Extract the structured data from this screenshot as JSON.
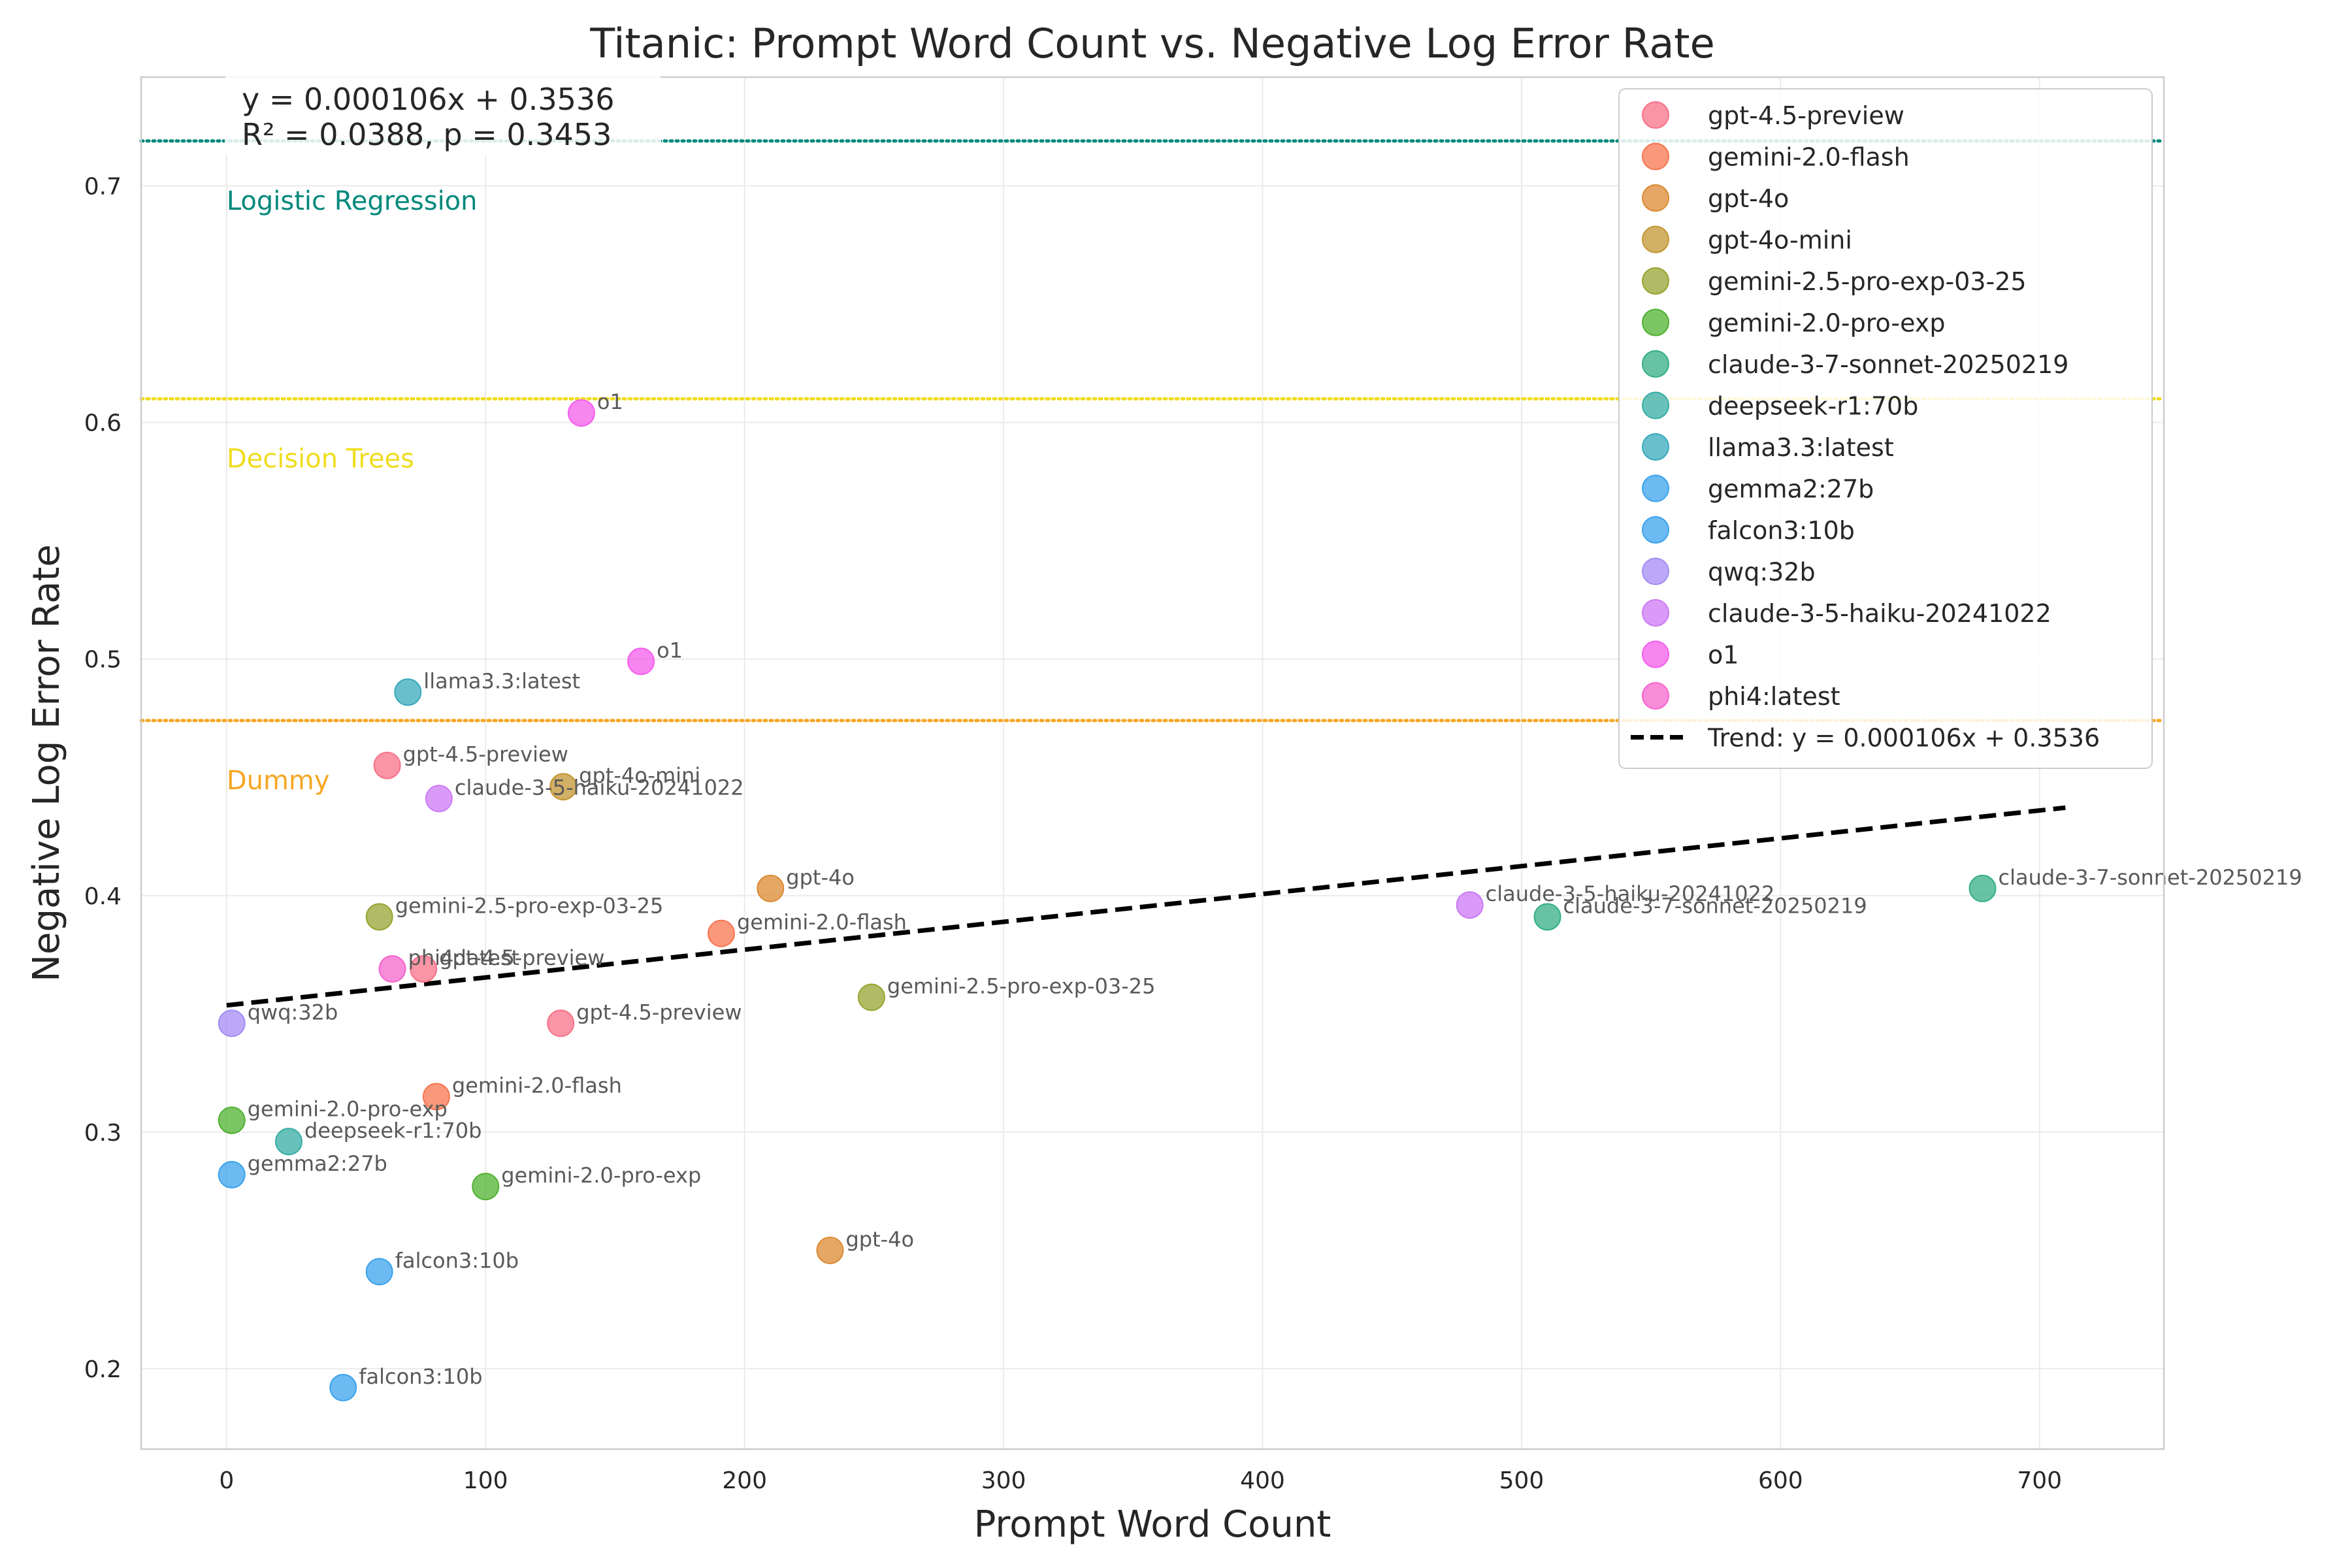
{
  "chart_data": {
    "type": "scatter",
    "title": "Titanic: Prompt Word Count vs. Negative Log Error Rate",
    "xlabel": "Prompt Word Count",
    "ylabel": "Negative Log Error Rate",
    "xlim": [
      -33,
      748
    ],
    "ylim": [
      0.166,
      0.746
    ],
    "xticks": [
      0,
      100,
      200,
      300,
      400,
      500,
      600,
      700
    ],
    "yticks": [
      0.2,
      0.3,
      0.4,
      0.5,
      0.6,
      0.7
    ],
    "grid": true,
    "legend_position": "top-right",
    "stats_text": {
      "equation": "y = 0.000106x + 0.3536",
      "r2_p": "R² = 0.0388, p = 0.3453"
    },
    "baselines": [
      {
        "label": "Logistic Regression",
        "y": 0.719,
        "color": "#00897b"
      },
      {
        "label": "Decision Trees",
        "y": 0.61,
        "color": "#f0dc1e"
      },
      {
        "label": "Dummy",
        "y": 0.474,
        "color": "#f5a623"
      }
    ],
    "trend": {
      "label": "Trend: y = 0.000106x + 0.3536",
      "slope": 0.000106,
      "intercept": 0.3536,
      "x_range": [
        0,
        710
      ]
    },
    "series": [
      {
        "name": "gpt-4.5-preview",
        "color": "#f77189",
        "points": [
          {
            "x": 62,
            "y": 0.455
          },
          {
            "x": 76,
            "y": 0.369
          },
          {
            "x": 129,
            "y": 0.346
          }
        ]
      },
      {
        "name": "gemini-2.0-flash",
        "color": "#f7754f",
        "points": [
          {
            "x": 191,
            "y": 0.384
          },
          {
            "x": 81,
            "y": 0.315
          }
        ]
      },
      {
        "name": "gpt-4o",
        "color": "#dc8932",
        "points": [
          {
            "x": 210,
            "y": 0.403
          },
          {
            "x": 233,
            "y": 0.25
          }
        ]
      },
      {
        "name": "gpt-4o-mini",
        "color": "#c39532",
        "points": [
          {
            "x": 130,
            "y": 0.446
          }
        ]
      },
      {
        "name": "gemini-2.5-pro-exp-03-25",
        "color": "#97a431",
        "points": [
          {
            "x": 59,
            "y": 0.391
          },
          {
            "x": 249,
            "y": 0.357
          }
        ]
      },
      {
        "name": "gemini-2.0-pro-exp",
        "color": "#50b131",
        "points": [
          {
            "x": 2,
            "y": 0.305
          },
          {
            "x": 100,
            "y": 0.277
          }
        ]
      },
      {
        "name": "claude-3-7-sonnet-20250219",
        "color": "#34af84",
        "points": [
          {
            "x": 678,
            "y": 0.403
          },
          {
            "x": 510,
            "y": 0.391
          }
        ]
      },
      {
        "name": "deepseek-r1:70b",
        "color": "#36ada4",
        "points": [
          {
            "x": 24,
            "y": 0.296
          }
        ]
      },
      {
        "name": "llama3.3:latest",
        "color": "#38aabc",
        "points": [
          {
            "x": 70,
            "y": 0.486
          }
        ]
      },
      {
        "name": "gemma2:27b",
        "color": "#3ba3ec",
        "points": [
          {
            "x": 2,
            "y": 0.282
          }
        ]
      },
      {
        "name": "falcon3:10b",
        "color": "#3ba3ec",
        "points": [
          {
            "x": 59,
            "y": 0.241
          },
          {
            "x": 45,
            "y": 0.192
          }
        ]
      },
      {
        "name": "qwq:32b",
        "color": "#a48cf4",
        "points": [
          {
            "x": 2,
            "y": 0.346
          }
        ]
      },
      {
        "name": "claude-3-5-haiku-20241022",
        "color": "#cc7af4",
        "points": [
          {
            "x": 82,
            "y": 0.441
          },
          {
            "x": 480,
            "y": 0.396
          }
        ]
      },
      {
        "name": "o1",
        "color": "#f45deb",
        "points": [
          {
            "x": 137,
            "y": 0.604
          },
          {
            "x": 160,
            "y": 0.499
          }
        ]
      },
      {
        "name": "phi4:latest",
        "color": "#f565cc",
        "points": [
          {
            "x": 64,
            "y": 0.369
          }
        ]
      }
    ]
  }
}
